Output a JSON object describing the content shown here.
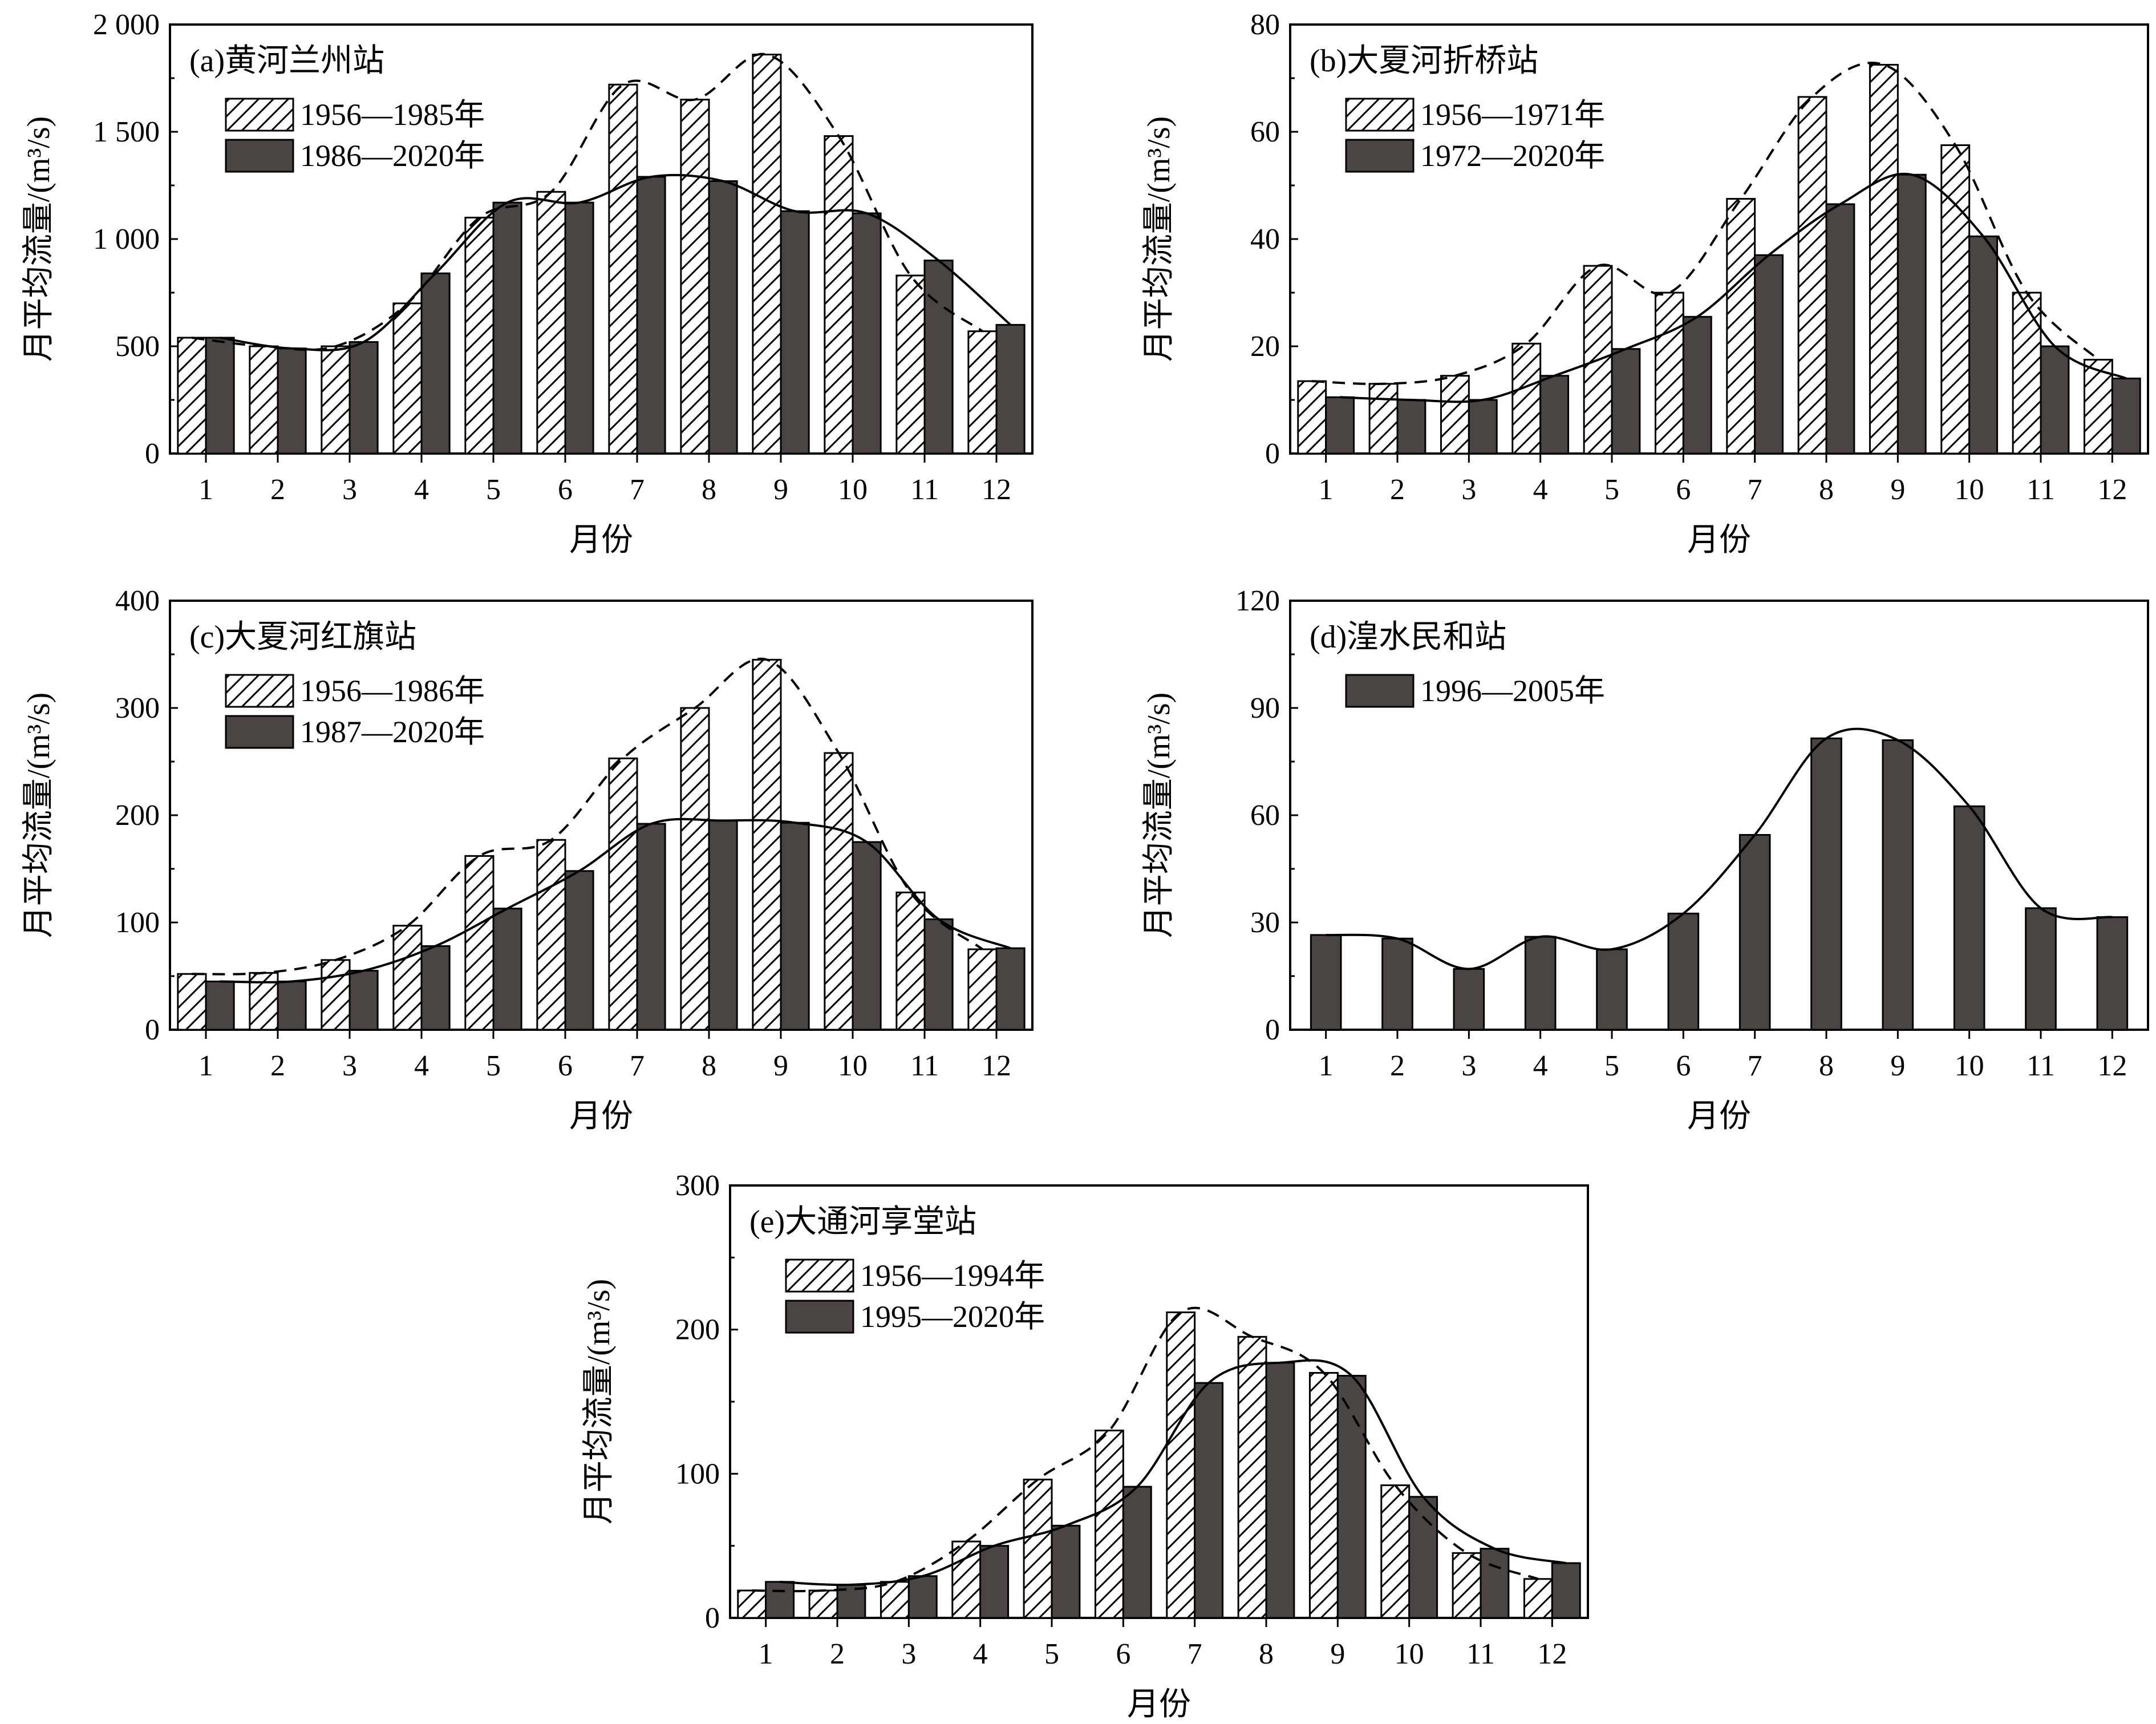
{
  "colors": {
    "dark_bar": "#4a4443",
    "hatch_bar": "#ffffff",
    "stroke": "#000000"
  },
  "chart_data": [
    {
      "id": "a",
      "type": "bar",
      "title": "(a)黄河兰州站",
      "xlabel": "月份",
      "ylabel": "月平均流量/(m³/s)",
      "categories": [
        "1",
        "2",
        "3",
        "4",
        "5",
        "6",
        "7",
        "8",
        "9",
        "10",
        "11",
        "12"
      ],
      "ylim": [
        0,
        2000
      ],
      "yticks": [
        0,
        500,
        1000,
        1500,
        2000
      ],
      "ytick_labels": [
        "0",
        "500",
        "1 000",
        "1 500",
        "2 000"
      ],
      "legend_position": "top-left",
      "series": [
        {
          "name": "1956—1985年",
          "style": "hatched",
          "line": "dashed",
          "values": [
            540,
            500,
            500,
            700,
            1100,
            1220,
            1720,
            1650,
            1860,
            1480,
            830,
            570
          ]
        },
        {
          "name": "1986—2020年",
          "style": "dark",
          "line": "solid",
          "values": [
            540,
            490,
            520,
            840,
            1170,
            1170,
            1290,
            1270,
            1130,
            1120,
            900,
            600
          ]
        }
      ]
    },
    {
      "id": "b",
      "type": "bar",
      "title": "(b)大夏河折桥站",
      "xlabel": "月份",
      "ylabel": "月平均流量/(m³/s)",
      "categories": [
        "1",
        "2",
        "3",
        "4",
        "5",
        "6",
        "7",
        "8",
        "9",
        "10",
        "11",
        "12"
      ],
      "ylim": [
        0,
        80
      ],
      "yticks": [
        0,
        20,
        40,
        60,
        80
      ],
      "ytick_labels": [
        "0",
        "20",
        "40",
        "60",
        "80"
      ],
      "legend_position": "top-left",
      "series": [
        {
          "name": "1956—1971年",
          "style": "hatched",
          "line": "dashed",
          "values": [
            13.5,
            13,
            14.5,
            20.5,
            35,
            30,
            47.5,
            66.5,
            72.5,
            57.5,
            30,
            17.5
          ]
        },
        {
          "name": "1972—2020年",
          "style": "dark",
          "line": "solid",
          "values": [
            10.5,
            10,
            10,
            14.5,
            19.5,
            25.5,
            37,
            46.5,
            52,
            40.5,
            20,
            14
          ]
        }
      ]
    },
    {
      "id": "c",
      "type": "bar",
      "title": "(c)大夏河红旗站",
      "xlabel": "月份",
      "ylabel": "月平均流量/(m³/s)",
      "categories": [
        "1",
        "2",
        "3",
        "4",
        "5",
        "6",
        "7",
        "8",
        "9",
        "10",
        "11",
        "12"
      ],
      "ylim": [
        0,
        400
      ],
      "yticks": [
        0,
        100,
        200,
        300,
        400
      ],
      "ytick_labels": [
        "0",
        "100",
        "200",
        "300",
        "400"
      ],
      "legend_position": "top-left",
      "series": [
        {
          "name": "1956—1986年",
          "style": "hatched",
          "line": "dashed",
          "values": [
            52,
            53,
            65,
            97,
            162,
            177,
            253,
            300,
            345,
            258,
            128,
            75
          ]
        },
        {
          "name": "1987—2020年",
          "style": "dark",
          "line": "solid",
          "values": [
            45,
            45,
            55,
            78,
            113,
            148,
            192,
            195,
            193,
            175,
            103,
            76
          ]
        }
      ]
    },
    {
      "id": "d",
      "type": "bar",
      "title": "(d)湟水民和站",
      "xlabel": "月份",
      "ylabel": "月平均流量/(m³/s)",
      "categories": [
        "1",
        "2",
        "3",
        "4",
        "5",
        "6",
        "7",
        "8",
        "9",
        "10",
        "11",
        "12"
      ],
      "ylim": [
        0,
        120
      ],
      "yticks": [
        0,
        30,
        60,
        90,
        120
      ],
      "ytick_labels": [
        "0",
        "30",
        "60",
        "90",
        "120"
      ],
      "legend_position": "top-left",
      "series": [
        {
          "name": "1996—2005年",
          "style": "dark",
          "line": "solid",
          "values": [
            26.5,
            25.5,
            17,
            26,
            22.5,
            32.5,
            54.5,
            81.5,
            81,
            62.5,
            34,
            31.5
          ]
        }
      ]
    },
    {
      "id": "e",
      "type": "bar",
      "title": "(e)大通河享堂站",
      "xlabel": "月份",
      "ylabel": "月平均流量/(m³/s)",
      "categories": [
        "1",
        "2",
        "3",
        "4",
        "5",
        "6",
        "7",
        "8",
        "9",
        "10",
        "11",
        "12"
      ],
      "ylim": [
        0,
        300
      ],
      "yticks": [
        0,
        100,
        200,
        300
      ],
      "ytick_labels": [
        "0",
        "100",
        "200",
        "300"
      ],
      "legend_position": "top-left",
      "series": [
        {
          "name": "1956—1994年",
          "style": "hatched",
          "line": "dashed",
          "values": [
            19,
            19,
            25,
            53,
            96,
            130,
            212,
            195,
            170,
            92,
            45,
            27
          ]
        },
        {
          "name": "1995—2020年",
          "style": "dark",
          "line": "solid",
          "values": [
            25,
            23,
            29,
            50,
            64,
            91,
            163,
            177,
            168,
            84,
            48,
            38
          ]
        }
      ]
    }
  ]
}
